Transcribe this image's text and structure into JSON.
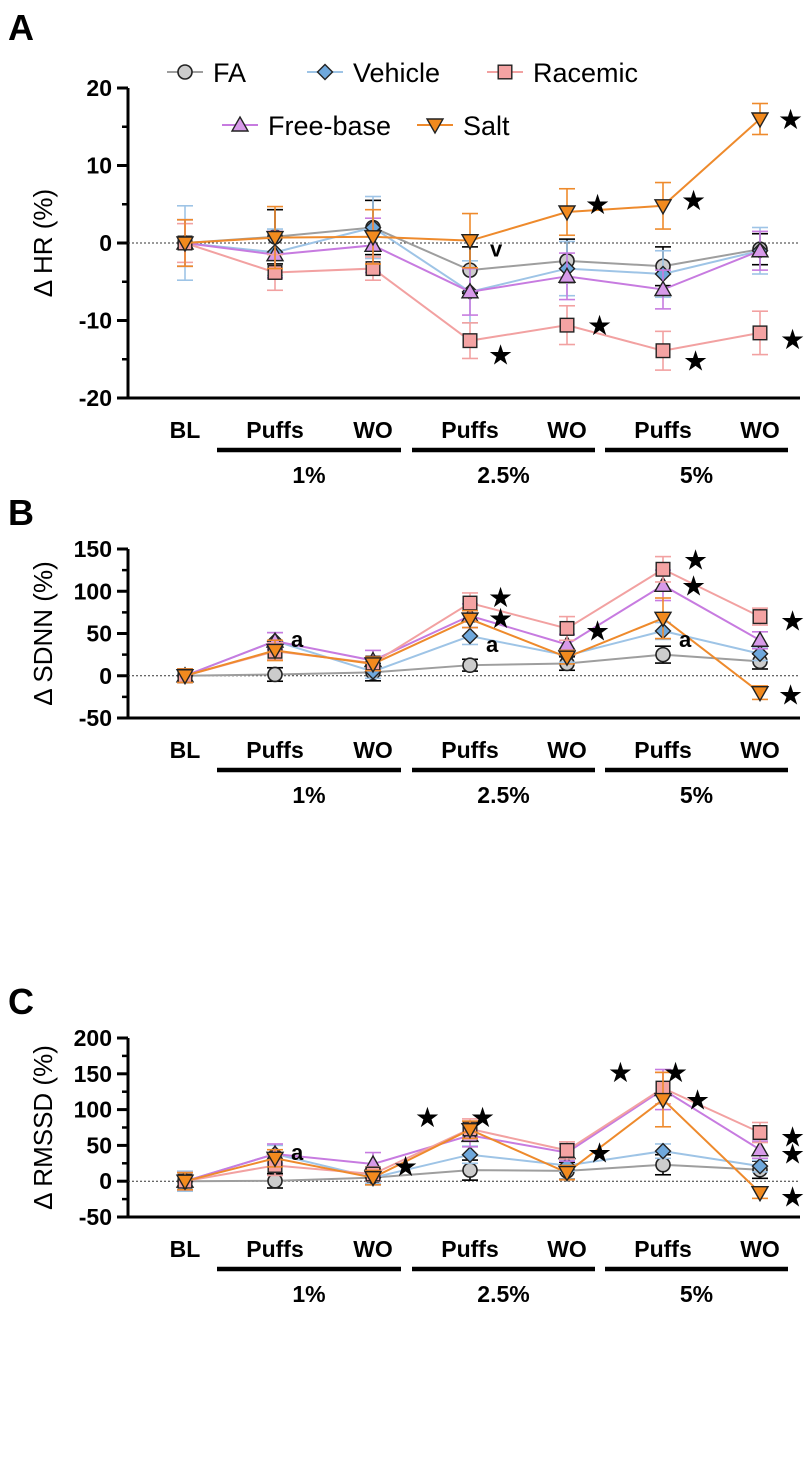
{
  "chart_data": [
    {
      "type": "line",
      "panel": "A",
      "ylabel": "Δ HR (%)",
      "ylim": [
        -20,
        20
      ],
      "yticks": [
        -20,
        -10,
        0,
        10,
        20
      ],
      "categories": [
        "BL",
        "Puffs",
        "WO",
        "Puffs",
        "WO",
        "Puffs",
        "WO"
      ],
      "groups": [
        {
          "label": "1%",
          "from": 1,
          "to": 2
        },
        {
          "label": "2.5%",
          "from": 3,
          "to": 4
        },
        {
          "label": "5%",
          "from": 5,
          "to": 6
        }
      ],
      "legend_position": "top",
      "series": [
        {
          "name": "FA",
          "values": [
            0,
            0.8,
            2,
            -3.5,
            -2.3,
            -3,
            -0.8
          ],
          "errors": [
            3.0,
            3.5,
            3.5,
            3.0,
            2.8,
            2.5,
            2.0
          ]
        },
        {
          "name": "Vehicle",
          "values": [
            0,
            -1.2,
            2,
            -6.3,
            -3.3,
            -4,
            -1
          ],
          "errors": [
            4.8,
            3.0,
            4.0,
            4.0,
            3.5,
            3.0,
            3.0
          ]
        },
        {
          "name": "Racemic",
          "values": [
            0,
            -3.8,
            -3.3,
            -12.6,
            -10.6,
            -13.9,
            -11.6
          ],
          "errors": [
            2.5,
            2.3,
            1.5,
            2.3,
            2.5,
            2.5,
            2.8
          ]
        },
        {
          "name": "Free-base",
          "values": [
            0,
            -1.5,
            -0.3,
            -6.3,
            -4.3,
            -6,
            -1
          ],
          "errors": [
            3.0,
            3.0,
            3.5,
            3.0,
            3.0,
            2.5,
            2.5
          ]
        },
        {
          "name": "Salt",
          "values": [
            0,
            0.7,
            0.8,
            0.3,
            4,
            4.8,
            16
          ],
          "errors": [
            3.0,
            4.0,
            3.5,
            3.5,
            3.0,
            3.0,
            2.0
          ]
        }
      ],
      "annotations": [
        {
          "text": "v",
          "index": 3,
          "value": 0.3
        },
        {
          "text": "★",
          "index": 3,
          "value": -12.6
        },
        {
          "text": "★",
          "index": 4,
          "value": 4
        },
        {
          "text": "★",
          "index": 4,
          "value": -10.6
        },
        {
          "text": "★",
          "index": 5,
          "value": 4.8
        },
        {
          "text": "★",
          "index": 5,
          "value": -13.9
        },
        {
          "text": "★",
          "index": 6,
          "value": 16
        },
        {
          "text": "★",
          "index": 6,
          "value": -11.6
        }
      ]
    },
    {
      "type": "line",
      "panel": "B",
      "ylabel": "Δ SDNN (%)",
      "ylim": [
        -50,
        150
      ],
      "yticks": [
        -50,
        0,
        50,
        100,
        150
      ],
      "categories": [
        "BL",
        "Puffs",
        "WO",
        "Puffs",
        "WO",
        "Puffs",
        "WO"
      ],
      "groups": [
        {
          "label": "1%",
          "from": 1,
          "to": 2
        },
        {
          "label": "2.5%",
          "from": 3,
          "to": 4
        },
        {
          "label": "5%",
          "from": 5,
          "to": 6
        }
      ],
      "series": [
        {
          "name": "FA",
          "values": [
            0,
            1.5,
            4,
            12.5,
            14.5,
            25,
            17
          ],
          "errors": [
            8,
            8,
            10,
            7,
            8,
            10,
            9
          ]
        },
        {
          "name": "Vehicle",
          "values": [
            0,
            41,
            5,
            47,
            24,
            53,
            26
          ],
          "errors": [
            8,
            10,
            8,
            10,
            8,
            10,
            8
          ]
        },
        {
          "name": "Racemic",
          "values": [
            0,
            29,
            15,
            86,
            56,
            126,
            70
          ],
          "errors": [
            8,
            10,
            8,
            12,
            14,
            15,
            10
          ]
        },
        {
          "name": "Free-base",
          "values": [
            0,
            41,
            18,
            71,
            37,
            107,
            42
          ],
          "errors": [
            8,
            10,
            12,
            14,
            12,
            18,
            10
          ]
        },
        {
          "name": "Salt",
          "values": [
            0,
            30,
            14,
            67,
            22,
            68,
            -20
          ],
          "errors": [
            8,
            12,
            8,
            10,
            8,
            24,
            8
          ]
        }
      ],
      "annotations": [
        {
          "text": "a",
          "index": 1,
          "value": 41
        },
        {
          "text": "★",
          "index": 3,
          "value": 86
        },
        {
          "text": "★",
          "index": 3,
          "value": 71
        },
        {
          "text": "a",
          "index": 3,
          "value": 47
        },
        {
          "text": "★",
          "index": 4,
          "value": 56
        },
        {
          "text": "★",
          "index": 5,
          "value": 126
        },
        {
          "text": "★",
          "index": 5,
          "value": 107
        },
        {
          "text": "a",
          "index": 5,
          "value": 53
        },
        {
          "text": "★",
          "index": 6,
          "value": 70
        },
        {
          "text": "★",
          "index": 6,
          "value": -20
        }
      ]
    },
    {
      "type": "line",
      "panel": "C",
      "ylabel": "Δ RMSSD (%)",
      "ylim": [
        -50,
        200
      ],
      "yticks": [
        -50,
        0,
        50,
        100,
        150,
        200
      ],
      "categories": [
        "BL",
        "Puffs",
        "WO",
        "Puffs",
        "WO",
        "Puffs",
        "WO"
      ],
      "groups": [
        {
          "label": "1%",
          "from": 1,
          "to": 2
        },
        {
          "label": "2.5%",
          "from": 3,
          "to": 4
        },
        {
          "label": "5%",
          "from": 5,
          "to": 6
        }
      ],
      "series": [
        {
          "name": "FA",
          "values": [
            0,
            0.5,
            5,
            15.5,
            14.5,
            23,
            16
          ],
          "errors": [
            12,
            10,
            10,
            14,
            12,
            14,
            12
          ]
        },
        {
          "name": "Vehicle",
          "values": [
            0,
            38,
            5,
            37,
            22,
            42,
            21
          ],
          "errors": [
            14,
            12,
            8,
            12,
            8,
            10,
            8
          ]
        },
        {
          "name": "Racemic",
          "values": [
            0,
            22,
            10,
            73,
            43,
            130,
            68
          ],
          "errors": [
            12,
            14,
            10,
            14,
            12,
            22,
            14
          ]
        },
        {
          "name": "Free-base",
          "values": [
            0,
            38,
            24,
            64,
            40,
            128,
            44
          ],
          "errors": [
            12,
            14,
            16,
            16,
            12,
            28,
            12
          ]
        },
        {
          "name": "Salt",
          "values": [
            0,
            32,
            5,
            72,
            12,
            114,
            -16
          ],
          "errors": [
            12,
            12,
            10,
            12,
            10,
            38,
            8
          ]
        }
      ],
      "annotations": [
        {
          "text": "a",
          "index": 1,
          "value": 38
        },
        {
          "text": "★",
          "index": 2,
          "value": 24
        },
        {
          "text": "★★",
          "index": 3,
          "value": 73
        },
        {
          "text": "★",
          "index": 4,
          "value": 43
        },
        {
          "text": "★★",
          "index": 5,
          "value": 130
        },
        {
          "text": "★",
          "index": 5,
          "value": 114
        },
        {
          "text": "★",
          "index": 6,
          "value": 68
        },
        {
          "text": "★",
          "index": 6,
          "value": 44
        },
        {
          "text": "★",
          "index": 6,
          "value": -16
        }
      ]
    }
  ],
  "style": {
    "FA": {
      "marker": "circle",
      "line": "#9e9e9e",
      "fill": "#cccccc",
      "error": "#000000"
    },
    "Vehicle": {
      "marker": "diamond",
      "line": "#9ec4e6",
      "fill": "#6fa8dc",
      "error": "#9ec4e6"
    },
    "Racemic": {
      "marker": "square",
      "line": "#f2a1a1",
      "fill": "#f4a3a3",
      "error": "#f2a1a1"
    },
    "Free-base": {
      "marker": "triangle-up",
      "line": "#c77be0",
      "fill": "#d79ae9",
      "error": "#c77be0"
    },
    "Salt": {
      "marker": "triangle-down",
      "line": "#ee8a2c",
      "fill": "#f28a1e",
      "error": "#ee8a2c"
    }
  }
}
